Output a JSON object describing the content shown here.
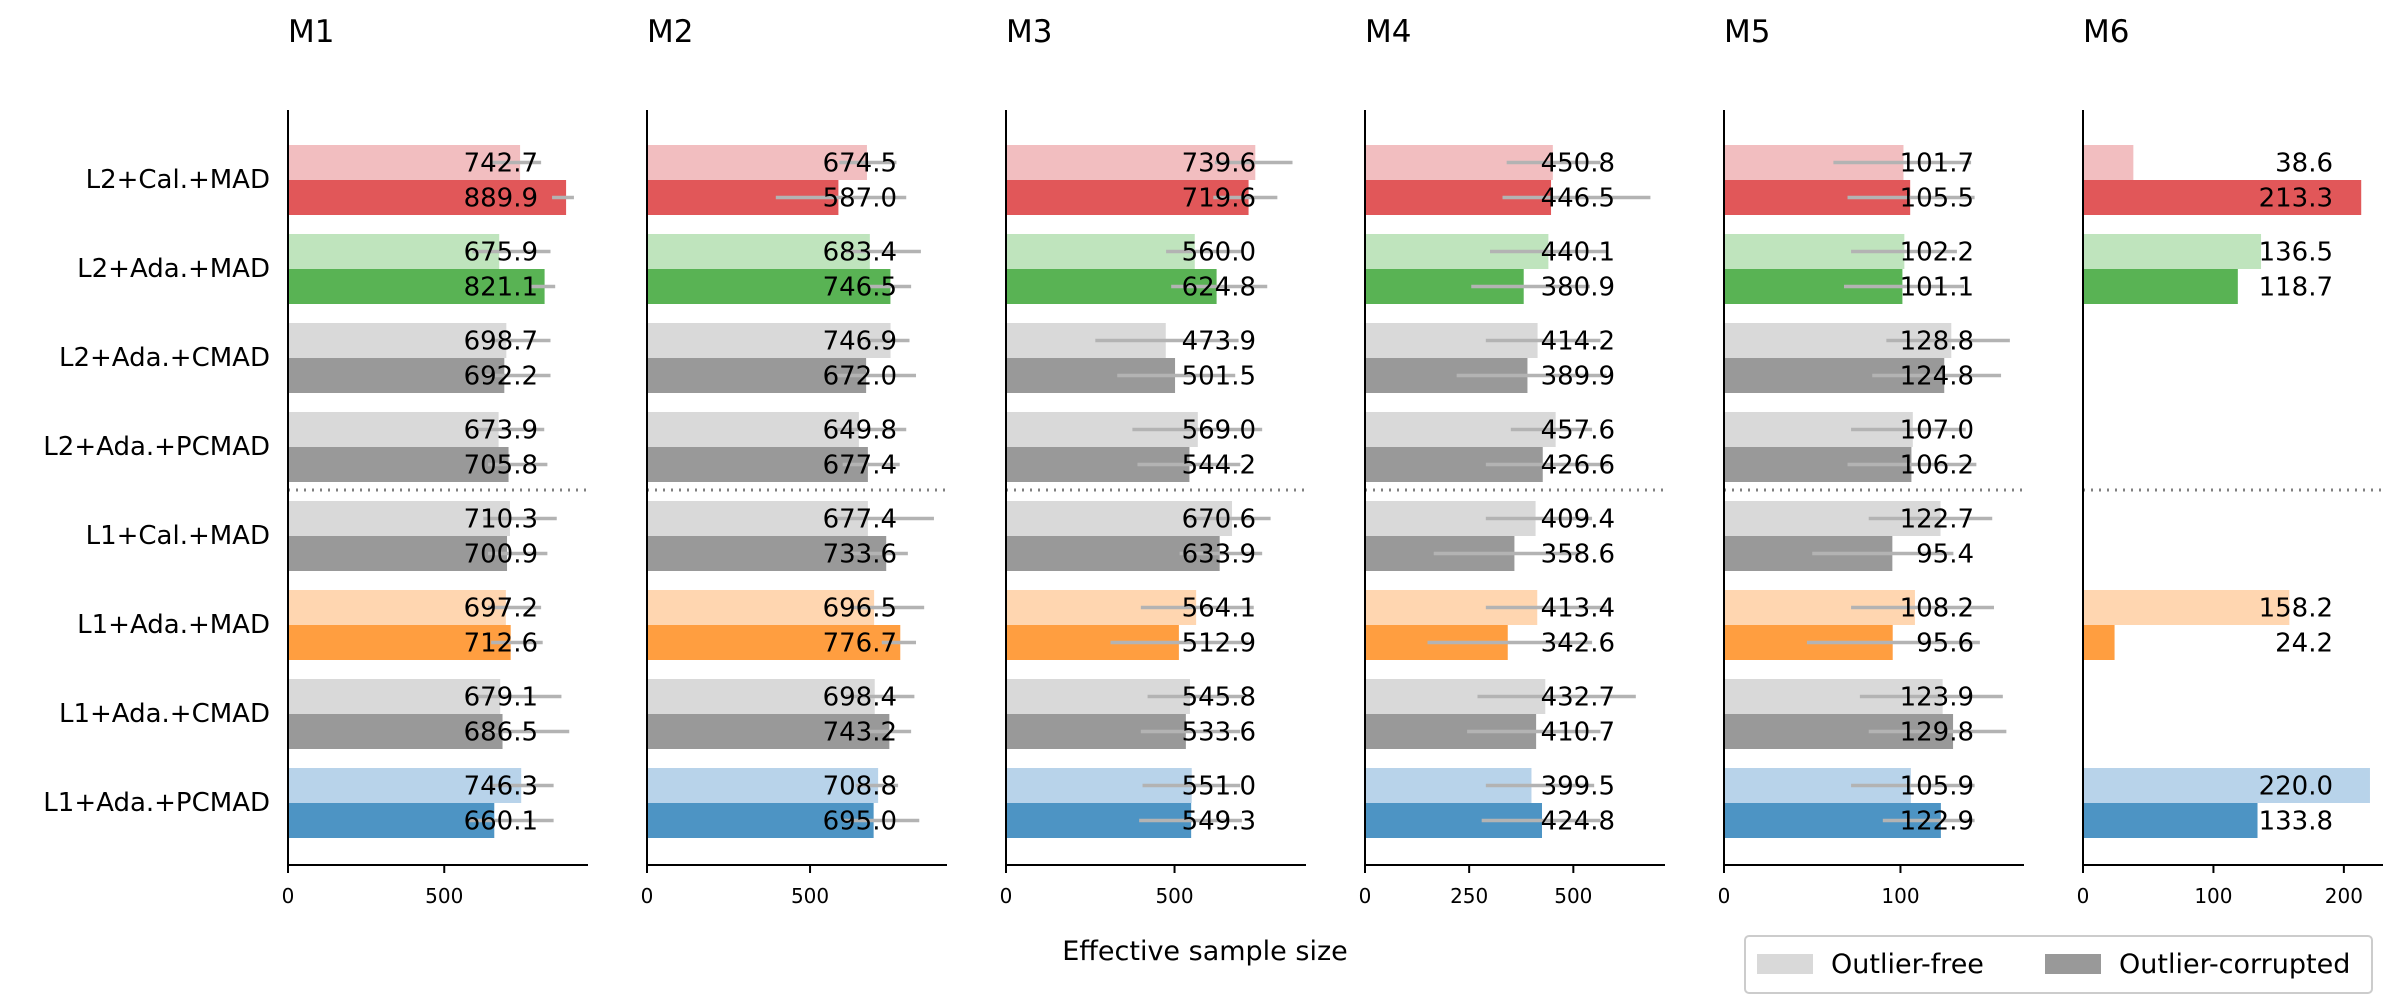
{
  "chart_data": {
    "type": "bar",
    "orientation": "horizontal",
    "xlabel": "Effective sample size",
    "categories": [
      "L2+Cal.+MAD",
      "L2+Ada.+MAD",
      "L2+Ada.+CMAD",
      "L2+Ada.+PCMAD",
      "L1+Cal.+MAD",
      "L1+Ada.+MAD",
      "L1+Ada.+CMAD",
      "L1+Ada.+PCMAD"
    ],
    "category_colors": [
      "#e15759",
      "#59b354",
      "#999999",
      "#999999",
      "#999999",
      "#ff9e40",
      "#999999",
      "#4d94c4"
    ],
    "category_colors_light": [
      "#f2bec0",
      "#bfe4bd",
      "#d9d9d9",
      "#d9d9d9",
      "#d9d9d9",
      "#ffd6b0",
      "#d9d9d9",
      "#b8d3ea"
    ],
    "separator_after_category": 3,
    "legend": {
      "position": "bottom-right",
      "entries": [
        {
          "label": "Outlier-free",
          "color": "#d9d9d9"
        },
        {
          "label": "Outlier-corrupted",
          "color": "#999999"
        }
      ]
    },
    "panels": [
      {
        "title": "M1",
        "xlim": [
          0,
          960
        ],
        "xticks": [
          0,
          500
        ],
        "outlier_free": [
          742.7,
          675.9,
          698.7,
          673.9,
          710.3,
          697.2,
          679.1,
          746.3
        ],
        "outlier_free_err": [
          [
            650,
            810
          ],
          [
            590,
            840
          ],
          [
            645,
            840
          ],
          [
            600,
            820
          ],
          [
            625,
            860
          ],
          [
            640,
            810
          ],
          [
            605,
            875
          ],
          [
            635,
            850
          ]
        ],
        "outlier_corrupted": [
          889.9,
          821.1,
          692.2,
          705.8,
          700.9,
          712.6,
          686.5,
          660.1
        ],
        "outlier_corrupted_err": [
          [
            845,
            915
          ],
          [
            775,
            855
          ],
          [
            625,
            840
          ],
          [
            640,
            830
          ],
          [
            640,
            830
          ],
          [
            650,
            815
          ],
          [
            600,
            900
          ],
          [
            580,
            850
          ]
        ],
        "labels_free": [
          "742.7",
          "675.9",
          "698.7",
          "673.9",
          "710.3",
          "697.2",
          "679.1",
          "746.3"
        ],
        "labels_corrupted": [
          "889.9",
          "821.1",
          "692.2",
          "705.8",
          "700.9",
          "712.6",
          "686.5",
          "660.1"
        ]
      },
      {
        "title": "M2",
        "xlim": [
          0,
          920
        ],
        "xticks": [
          0,
          500
        ],
        "outlier_free": [
          674.5,
          683.4,
          746.9,
          649.8,
          677.4,
          696.5,
          698.4,
          708.8
        ],
        "outlier_free_err": [
          [
            590,
            765
          ],
          [
            610,
            840
          ],
          [
            670,
            805
          ],
          [
            575,
            795
          ],
          [
            580,
            880
          ],
          [
            625,
            850
          ],
          [
            610,
            820
          ],
          [
            640,
            770
          ]
        ],
        "outlier_corrupted": [
          587.0,
          746.5,
          672.0,
          677.4,
          733.6,
          776.7,
          743.2,
          695.0
        ],
        "outlier_corrupted_err": [
          [
            395,
            795
          ],
          [
            680,
            810
          ],
          [
            580,
            825
          ],
          [
            600,
            775
          ],
          [
            620,
            800
          ],
          [
            720,
            825
          ],
          [
            670,
            810
          ],
          [
            600,
            835
          ]
        ],
        "labels_free": [
          "674.5",
          "683.4",
          "746.9",
          "649.8",
          "677.4",
          "696.5",
          "698.4",
          "708.8"
        ],
        "labels_corrupted": [
          "587.0",
          "746.5",
          "672.0",
          "677.4",
          "733.6",
          "776.7",
          "743.2",
          "695.0"
        ]
      },
      {
        "title": "M3",
        "xlim": [
          0,
          890
        ],
        "xticks": [
          0,
          500
        ],
        "outlier_free": [
          739.6,
          560.0,
          473.9,
          569.0,
          670.6,
          564.1,
          545.8,
          551.0
        ],
        "outlier_free_err": [
          [
            620,
            850
          ],
          [
            475,
            705
          ],
          [
            265,
            690
          ],
          [
            375,
            760
          ],
          [
            545,
            785
          ],
          [
            400,
            735
          ],
          [
            420,
            710
          ],
          [
            405,
            695
          ]
        ],
        "outlier_corrupted": [
          719.6,
          624.8,
          501.5,
          544.2,
          633.9,
          512.9,
          533.6,
          549.3
        ],
        "outlier_corrupted_err": [
          [
            615,
            805
          ],
          [
            490,
            775
          ],
          [
            330,
            680
          ],
          [
            390,
            695
          ],
          [
            515,
            760
          ],
          [
            310,
            720
          ],
          [
            400,
            695
          ],
          [
            395,
            700
          ]
        ],
        "labels_free": [
          "739.6",
          "560.0",
          "473.9",
          "569.0",
          "670.6",
          "564.1",
          "545.8",
          "551.0"
        ],
        "labels_corrupted": [
          "719.6",
          "624.8",
          "501.5",
          "544.2",
          "633.9",
          "512.9",
          "533.6",
          "549.3"
        ]
      },
      {
        "title": "M4",
        "xlim": [
          0,
          720
        ],
        "xticks": [
          0,
          250,
          500
        ],
        "outlier_free": [
          450.8,
          440.1,
          414.2,
          457.6,
          409.4,
          413.4,
          432.7,
          399.5
        ],
        "outlier_free_err": [
          [
            340,
            565
          ],
          [
            300,
            580
          ],
          [
            290,
            565
          ],
          [
            350,
            545
          ],
          [
            290,
            545
          ],
          [
            290,
            580
          ],
          [
            270,
            650
          ],
          [
            290,
            550
          ]
        ],
        "outlier_corrupted": [
          446.5,
          380.9,
          389.9,
          426.6,
          358.6,
          342.6,
          410.7,
          424.8
        ],
        "outlier_corrupted_err": [
          [
            330,
            685
          ],
          [
            255,
            540
          ],
          [
            220,
            580
          ],
          [
            290,
            585
          ],
          [
            165,
            520
          ],
          [
            150,
            545
          ],
          [
            245,
            565
          ],
          [
            280,
            565
          ]
        ],
        "labels_free": [
          "450.8",
          "440.1",
          "414.2",
          "457.6",
          "409.4",
          "413.4",
          "432.7",
          "399.5"
        ],
        "labels_corrupted": [
          "446.5",
          "380.9",
          "389.9",
          "426.6",
          "358.6",
          "342.6",
          "410.7",
          "424.8"
        ]
      },
      {
        "title": "M5",
        "xlim": [
          0,
          170
        ],
        "xticks": [
          0,
          100
        ],
        "outlier_free": [
          101.7,
          102.2,
          128.8,
          107.0,
          122.7,
          108.2,
          123.9,
          105.9
        ],
        "outlier_free_err": [
          [
            62,
            140
          ],
          [
            72,
            132
          ],
          [
            92,
            162
          ],
          [
            72,
            137
          ],
          [
            82,
            152
          ],
          [
            72,
            153
          ],
          [
            77,
            158
          ],
          [
            72,
            142
          ]
        ],
        "outlier_corrupted": [
          105.5,
          101.1,
          124.8,
          106.2,
          95.4,
          95.6,
          129.8,
          122.9
        ],
        "outlier_corrupted_err": [
          [
            70,
            142
          ],
          [
            68,
            136
          ],
          [
            84,
            157
          ],
          [
            70,
            143
          ],
          [
            50,
            130
          ],
          [
            47,
            145
          ],
          [
            82,
            160
          ],
          [
            90,
            142
          ]
        ],
        "labels_free": [
          "101.7",
          "102.2",
          "128.8",
          "107.0",
          "122.7",
          "108.2",
          "123.9",
          "105.9"
        ],
        "labels_corrupted": [
          "105.5",
          "101.1",
          "124.8",
          "106.2",
          "95.4",
          "95.6",
          "129.8",
          "122.9"
        ]
      },
      {
        "title": "M6",
        "xlim": [
          0,
          230
        ],
        "xticks": [
          0,
          100,
          200
        ],
        "outlier_free": [
          38.6,
          136.5,
          null,
          null,
          null,
          158.2,
          null,
          220.0
        ],
        "outlier_corrupted": [
          213.3,
          118.7,
          null,
          null,
          null,
          24.2,
          null,
          133.8
        ],
        "labels_free": [
          "38.6",
          "136.5",
          null,
          null,
          null,
          "158.2",
          null,
          "220.0"
        ],
        "labels_corrupted": [
          "213.3",
          "118.7",
          null,
          null,
          null,
          "24.2",
          null,
          "133.8"
        ]
      }
    ]
  }
}
